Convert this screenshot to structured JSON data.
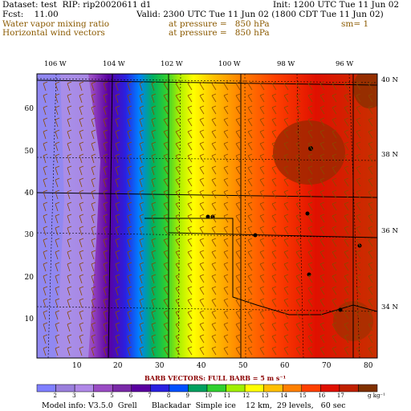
{
  "header": {
    "dataset": "Dataset: test  RIP: rip20020611 d1",
    "init": "Init: 1200 UTC Tue 11 Jun 02",
    "fcst": "Fcst:    11.00",
    "valid": "Valid: 2300 UTC Tue 11 Jun 02 (1800 CDT Tue 11 Jun 02)",
    "field1": "Water vapor mixing ratio",
    "field1_level": "at pressure =   850 hPa",
    "field1_sm": "sm= 1",
    "field2": "Horizontal wind vectors",
    "field2_level": "at pressure =   850 hPa"
  },
  "map": {
    "lon_labels": [
      "106 W",
      "104 W",
      "102 W",
      "100 W",
      "98 W",
      "96 W"
    ],
    "lat_labels": [
      "40 N",
      "38 N",
      "36 N",
      "34 N"
    ],
    "y_ticks": [
      "60",
      "50",
      "40",
      "30",
      "20",
      "10"
    ],
    "x_ticks": [
      "10",
      "20",
      "30",
      "40",
      "50",
      "60",
      "70",
      "80"
    ]
  },
  "barbs_caption": "BARB VECTORS:  FULL BARB = 5 m s⁻¹",
  "colorbar": {
    "labels": [
      "2",
      "3",
      "4",
      "5",
      "6",
      "7",
      "8",
      "9",
      "10",
      "11",
      "12",
      "13",
      "14",
      "15",
      "16",
      "17"
    ],
    "units": "g kg⁻¹",
    "colors": [
      "#7f7fff",
      "#9a7fdc",
      "#b088e8",
      "#9a4cc4",
      "#7a2aa8",
      "#5a00a0",
      "#2a20e0",
      "#0050ff",
      "#00a060",
      "#30d030",
      "#a0f000",
      "#ffff00",
      "#ffc000",
      "#ff8000",
      "#ff4000",
      "#e01000",
      "#c02000",
      "#803000"
    ]
  },
  "footer": "Model info: V3.5.0  Grell      Blackadar  Simple ice    12 km,  29 levels,   60 sec"
}
